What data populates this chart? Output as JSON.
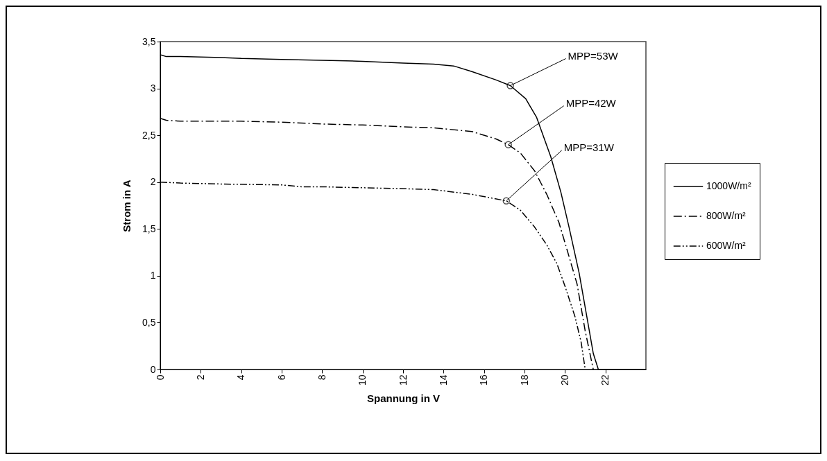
{
  "chart_data": {
    "type": "line",
    "xlabel": "Spannung in V",
    "ylabel": "Strom in A",
    "xlim": [
      0,
      24
    ],
    "xticks": [
      0,
      2,
      4,
      6,
      8,
      10,
      12,
      14,
      16,
      18,
      20,
      22
    ],
    "ylim": [
      0,
      3.5
    ],
    "yticks": [
      0,
      {
        "value": 0.5,
        "label": "0,5"
      },
      1,
      {
        "value": 1.5,
        "label": "1,5"
      },
      2,
      {
        "value": 2.5,
        "label": "2,5"
      },
      3,
      {
        "value": 3.5,
        "label": "3,5"
      }
    ],
    "grid": false,
    "legend": "right",
    "series": [
      {
        "name": "1000W/m²",
        "color": "#000000",
        "line_style": "solid",
        "x": [
          0,
          0.3,
          1,
          3,
          4,
          6,
          8,
          10,
          12,
          13.5,
          14.5,
          15.4,
          16.6,
          17.3,
          18.06,
          18.6,
          19.3,
          19.8,
          20.2,
          20.7,
          21.1,
          21.4,
          21.65,
          24
        ],
        "values": [
          3.36,
          3.34,
          3.34,
          3.33,
          3.32,
          3.31,
          3.3,
          3.29,
          3.27,
          3.26,
          3.24,
          3.18,
          3.09,
          3.03,
          2.89,
          2.69,
          2.27,
          1.89,
          1.52,
          1.03,
          0.54,
          0.17,
          0,
          0
        ]
      },
      {
        "name": "800W/m²",
        "color": "#000000",
        "line_style": "dashed",
        "x": [
          0,
          0.3,
          1,
          4,
          6,
          8,
          10,
          12,
          13.5,
          15.4,
          16.6,
          17.2,
          17.8,
          18.5,
          19.1,
          19.7,
          20.1,
          20.6,
          21.0,
          21.4
        ],
        "values": [
          2.68,
          2.66,
          2.65,
          2.65,
          2.64,
          2.62,
          2.61,
          2.59,
          2.58,
          2.54,
          2.46,
          2.4,
          2.31,
          2.12,
          1.87,
          1.57,
          1.28,
          0.91,
          0.41,
          0
        ]
      },
      {
        "name": "600W/m²",
        "color": "#000000",
        "line_style": "dotted",
        "x": [
          0,
          1,
          3,
          6,
          7,
          8,
          10,
          12,
          13.5,
          15.4,
          17.1,
          17.8,
          18.5,
          19.1,
          19.6,
          20.0,
          20.5,
          20.8,
          21.0
        ],
        "values": [
          2.0,
          1.99,
          1.98,
          1.97,
          1.95,
          1.95,
          1.94,
          1.93,
          1.92,
          1.87,
          1.8,
          1.7,
          1.52,
          1.33,
          1.13,
          0.89,
          0.56,
          0.29,
          0
        ]
      }
    ],
    "annotations": [
      {
        "text": "MPP=53W",
        "x": 17.3,
        "y": 3.03
      },
      {
        "text": "MPP=42W",
        "x": 17.2,
        "y": 2.4
      },
      {
        "text": "MPP=31W",
        "x": 17.1,
        "y": 1.8
      }
    ]
  }
}
